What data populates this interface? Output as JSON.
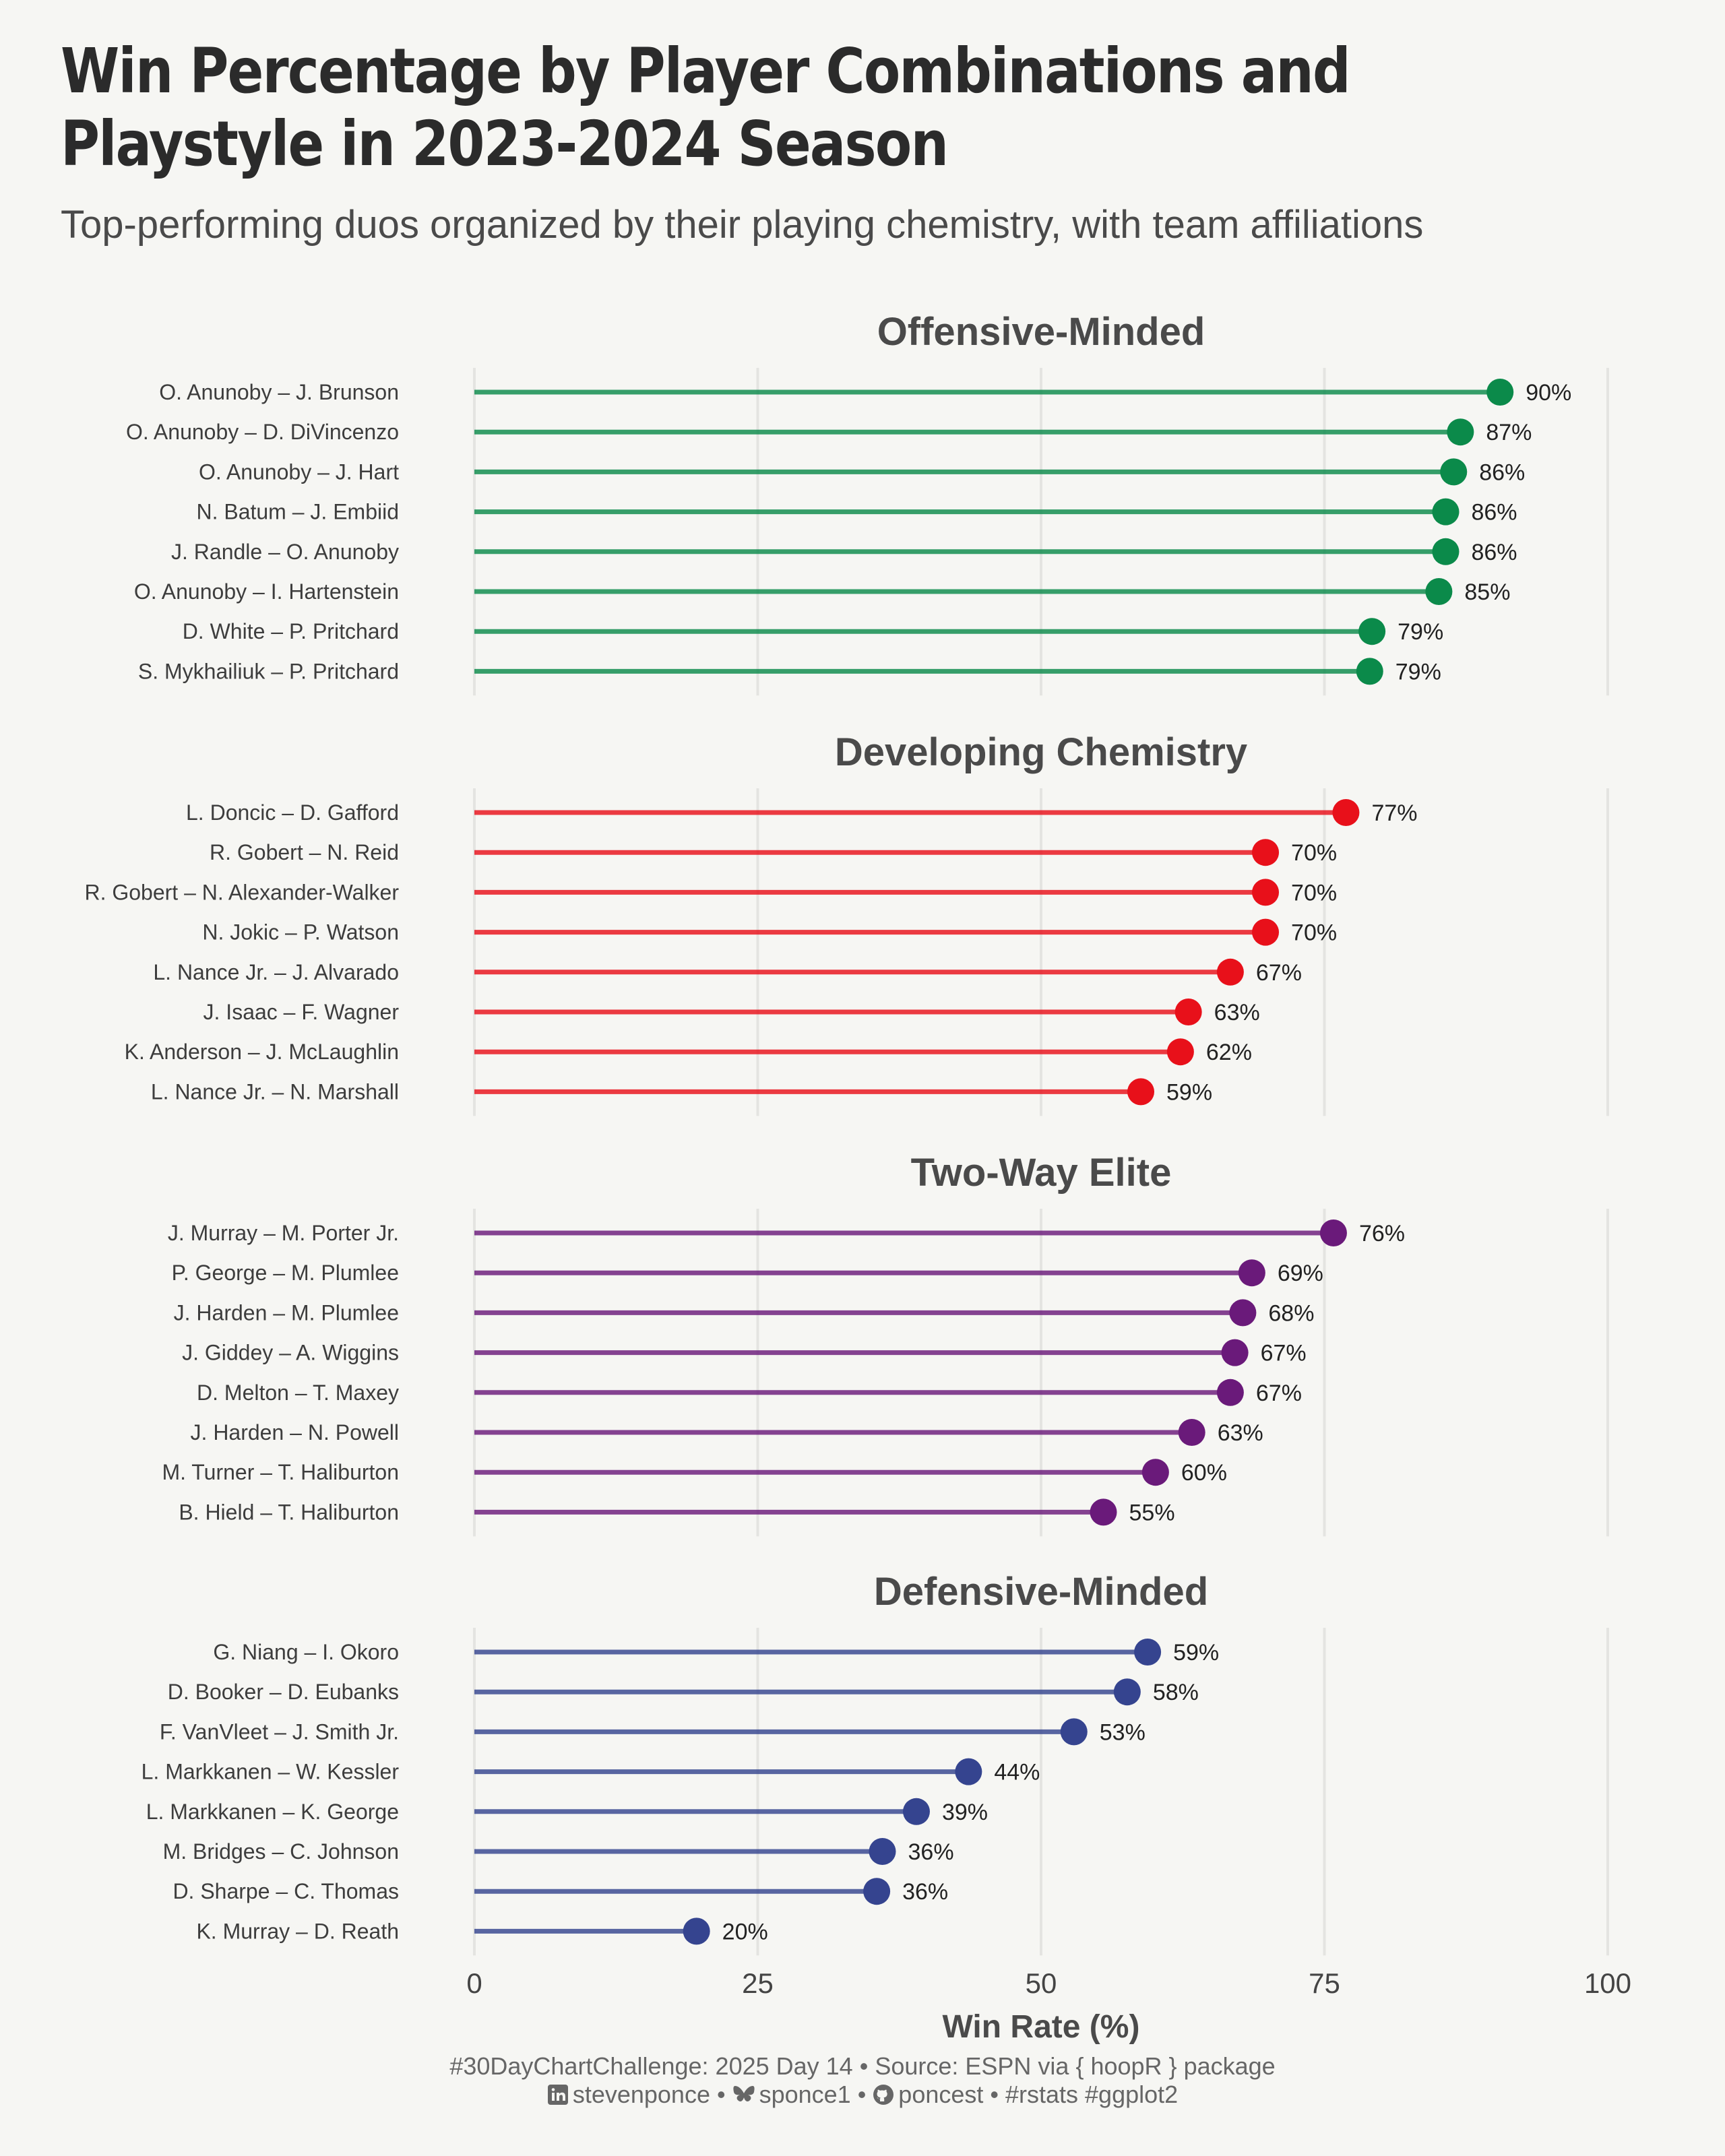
{
  "header": {
    "title": "Win Percentage by Player Combinations and Playstyle in 2023-2024 Season",
    "subtitle": "Top-performing duos organized by their playing chemistry, with team affiliations"
  },
  "chart_data": {
    "type": "lollipop",
    "xlabel": "Win Rate (%)",
    "xlim": [
      0,
      100
    ],
    "xticks": [
      0,
      25,
      50,
      75,
      100
    ],
    "grid": "vertical",
    "facets": [
      {
        "title": "Offensive-Minded",
        "color": "#0b8a4a",
        "players": [
          "O. Anunoby – J. Brunson",
          "O. Anunoby – D. DiVincenzo",
          "O. Anunoby – J. Hart",
          "N. Batum – J. Embiid",
          "J. Randle – O. Anunoby",
          "O. Anunoby – I. Hartenstein",
          "D. White – P. Pritchard",
          "S. Mykhailiuk – P. Pritchard"
        ],
        "values": [
          90.5,
          87,
          86.4,
          85.7,
          85.7,
          85.1,
          79.2,
          79
        ],
        "labels": [
          "90%",
          "87%",
          "86%",
          "86%",
          "86%",
          "85%",
          "79%",
          "79%"
        ]
      },
      {
        "title": "Developing Chemistry",
        "color": "#e8101a",
        "players": [
          "L. Doncic – D. Gafford",
          "R. Gobert – N. Reid",
          "R. Gobert – N. Alexander-Walker",
          "N. Jokic – P. Watson",
          "L. Nance Jr. – J. Alvarado",
          "J. Isaac – F. Wagner",
          "K. Anderson – J. McLaughlin",
          "L. Nance Jr. – N. Marshall"
        ],
        "values": [
          76.9,
          69.8,
          69.8,
          69.8,
          66.7,
          63,
          62.3,
          58.8
        ],
        "labels": [
          "77%",
          "70%",
          "70%",
          "70%",
          "67%",
          "63%",
          "62%",
          "59%"
        ]
      },
      {
        "title": "Two-Way Elite",
        "color": "#6a1a7a",
        "players": [
          "J. Murray – M. Porter Jr.",
          "P. George – M. Plumlee",
          "J. Harden – M. Plumlee",
          "J. Giddey – A. Wiggins",
          "D. Melton – T. Maxey",
          "J. Harden – N. Powell",
          "M. Turner – T. Haliburton",
          "B. Hield – T. Haliburton"
        ],
        "values": [
          75.8,
          68.6,
          67.8,
          67.1,
          66.7,
          63.3,
          60.1,
          55.5
        ],
        "labels": [
          "76%",
          "69%",
          "68%",
          "67%",
          "67%",
          "63%",
          "60%",
          "55%"
        ]
      },
      {
        "title": "Defensive-Minded",
        "color": "#35448f",
        "players": [
          "G. Niang – I. Okoro",
          "D. Booker – D. Eubanks",
          "F. VanVleet – J. Smith Jr.",
          "L. Markkanen – W. Kessler",
          "L. Markkanen – K. George",
          "M. Bridges – C. Johnson",
          "D. Sharpe – C. Thomas",
          "K. Murray – D. Reath"
        ],
        "values": [
          59.4,
          57.6,
          52.9,
          43.6,
          39,
          36,
          35.5,
          19.6
        ],
        "labels": [
          "59%",
          "58%",
          "53%",
          "44%",
          "39%",
          "36%",
          "36%",
          "20%"
        ]
      }
    ]
  },
  "caption": {
    "line1": "#30DayChartChallenge: 2025 Day 14 • Source: ESPN via { hoopR } package",
    "linkedin": "stevenponce",
    "sep1": " • ",
    "bluesky": "sponce1",
    "sep2": " • ",
    "github": "poncest",
    "tags": " • #rstats #ggplot2",
    "icons": [
      "linkedin-icon",
      "bluesky-icon",
      "github-icon"
    ]
  }
}
